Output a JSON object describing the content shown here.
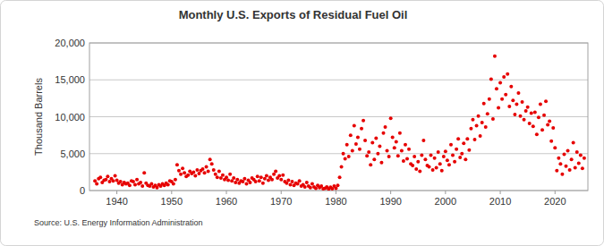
{
  "chart_data": {
    "type": "scatter",
    "title": "Monthly U.S. Exports of Residual Fuel Oil",
    "y_label": "Thousand Barrels",
    "source": "Source: U.S. Energy Information Administration",
    "color": "#e60000",
    "marker": "circle",
    "grid": true,
    "xlim": [
      1935,
      2026
    ],
    "ylim": [
      0,
      20000
    ],
    "xticks": [
      1940,
      1950,
      1960,
      1970,
      1980,
      1990,
      2000,
      2010,
      2020
    ],
    "yticks": [
      0,
      {
        "value": 5000,
        "label": "5,000"
      },
      {
        "value": 10000,
        "label": "10,000"
      },
      {
        "value": 15000,
        "label": "15,000"
      },
      {
        "value": 20000,
        "label": "20,000"
      }
    ],
    "x": [
      1936,
      1936.33,
      1936.67,
      1937,
      1937.33,
      1937.67,
      1938,
      1938.33,
      1938.67,
      1939,
      1939.33,
      1939.67,
      1940,
      1940.33,
      1940.67,
      1941,
      1941.33,
      1941.67,
      1942,
      1942.33,
      1942.67,
      1943,
      1943.33,
      1943.67,
      1944,
      1944.33,
      1944.67,
      1945,
      1945.33,
      1945.67,
      1946,
      1946.33,
      1946.67,
      1947,
      1947.33,
      1947.67,
      1948,
      1948.33,
      1948.67,
      1949,
      1949.33,
      1949.67,
      1950,
      1950.33,
      1950.67,
      1951,
      1951.33,
      1951.67,
      1952,
      1952.33,
      1952.67,
      1953,
      1953.33,
      1953.67,
      1954,
      1954.33,
      1954.67,
      1955,
      1955.33,
      1955.67,
      1956,
      1956.33,
      1956.67,
      1957,
      1957.33,
      1957.67,
      1958,
      1958.33,
      1958.67,
      1959,
      1959.33,
      1959.67,
      1960,
      1960.33,
      1960.67,
      1961,
      1961.33,
      1961.67,
      1962,
      1962.33,
      1962.67,
      1963,
      1963.33,
      1963.67,
      1964,
      1964.33,
      1964.67,
      1965,
      1965.33,
      1965.67,
      1966,
      1966.33,
      1966.67,
      1967,
      1967.33,
      1967.67,
      1968,
      1968.33,
      1968.67,
      1969,
      1969.33,
      1969.67,
      1970,
      1970.33,
      1970.67,
      1971,
      1971.33,
      1971.67,
      1972,
      1972.33,
      1972.67,
      1973,
      1973.33,
      1973.67,
      1974,
      1974.33,
      1974.67,
      1975,
      1975.33,
      1975.67,
      1976,
      1976.33,
      1976.67,
      1977,
      1977.33,
      1977.67,
      1978,
      1978.33,
      1978.67,
      1979,
      1979.33,
      1979.67,
      1980,
      1980.33,
      1980.67,
      1981,
      1981.33,
      1981.67,
      1982,
      1982.33,
      1982.67,
      1983,
      1983.33,
      1983.67,
      1984,
      1984.33,
      1984.67,
      1985,
      1985.33,
      1985.67,
      1986,
      1986.33,
      1986.67,
      1987,
      1987.33,
      1987.67,
      1988,
      1988.33,
      1988.67,
      1989,
      1989.33,
      1989.67,
      1990,
      1990.33,
      1990.67,
      1991,
      1991.33,
      1991.67,
      1992,
      1992.33,
      1992.67,
      1993,
      1993.33,
      1993.67,
      1994,
      1994.33,
      1994.67,
      1995,
      1995.33,
      1995.67,
      1996,
      1996.33,
      1996.67,
      1997,
      1997.33,
      1997.67,
      1998,
      1998.33,
      1998.67,
      1999,
      1999.33,
      1999.67,
      2000,
      2000.33,
      2000.67,
      2001,
      2001.33,
      2001.67,
      2002,
      2002.33,
      2002.67,
      2003,
      2003.33,
      2003.67,
      2004,
      2004.33,
      2004.67,
      2005,
      2005.33,
      2005.67,
      2006,
      2006.33,
      2006.67,
      2007,
      2007.33,
      2007.67,
      2008,
      2008.33,
      2008.67,
      2009,
      2009.33,
      2009.67,
      2010,
      2010.33,
      2010.67,
      2011,
      2011.33,
      2011.67,
      2012,
      2012.33,
      2012.67,
      2013,
      2013.33,
      2013.67,
      2014,
      2014.33,
      2014.67,
      2015,
      2015.33,
      2015.67,
      2016,
      2016.33,
      2016.67,
      2017,
      2017.33,
      2017.67,
      2018,
      2018.33,
      2018.67,
      2019,
      2019.33,
      2019.67,
      2020,
      2020.33,
      2020.67,
      2021,
      2021.33,
      2021.67,
      2022,
      2022.33,
      2022.67,
      2023,
      2023.33,
      2023.67,
      2024,
      2024.33,
      2024.67,
      2025,
      2025.33
    ],
    "values": [
      1300,
      900,
      1600,
      1800,
      1100,
      1400,
      1500,
      1900,
      1200,
      1600,
      1300,
      2000,
      1400,
      1000,
      1200,
      800,
      1100,
      900,
      1000,
      700,
      1300,
      1200,
      800,
      1500,
      900,
      1100,
      600,
      2400,
      1000,
      700,
      600,
      900,
      500,
      700,
      400,
      800,
      600,
      900,
      700,
      1000,
      800,
      1300,
      1200,
      900,
      1500,
      3500,
      2700,
      2200,
      3000,
      2400,
      1900,
      2100,
      2600,
      2300,
      2500,
      2000,
      2800,
      2300,
      2700,
      2900,
      2400,
      3200,
      2600,
      4200,
      3600,
      2800,
      2200,
      1800,
      2600,
      1700,
      2100,
      1500,
      1800,
      1400,
      2200,
      1300,
      1700,
      1100,
      1500,
      1000,
      1300,
      1200,
      1600,
      900,
      1400,
      1100,
      1700,
      1500,
      1200,
      1900,
      1300,
      1800,
      1000,
      1600,
      2000,
      1400,
      1800,
      1500,
      2200,
      2600,
      1700,
      2000,
      1500,
      2100,
      1200,
      1000,
      1400,
      800,
      1200,
      700,
      1000,
      900,
      1300,
      600,
      800,
      500,
      1100,
      600,
      400,
      900,
      500,
      300,
      700,
      400,
      600,
      250,
      300,
      500,
      200,
      450,
      250,
      600,
      300,
      700,
      1800,
      3200,
      5000,
      4300,
      6200,
      4600,
      7500,
      5400,
      8800,
      6300,
      7200,
      5600,
      8400,
      9500,
      6800,
      4700,
      5200,
      3500,
      6500,
      4200,
      7100,
      5000,
      6000,
      3800,
      7800,
      8600,
      5400,
      4600,
      9800,
      7200,
      5800,
      6600,
      4700,
      7800,
      5400,
      4000,
      6200,
      4300,
      5600,
      3600,
      3400,
      4600,
      2900,
      3900,
      2600,
      4800,
      6800,
      4200,
      3400,
      3200,
      4800,
      2800,
      4400,
      3100,
      5200,
      3600,
      2700,
      4600,
      5300,
      4100,
      3500,
      6200,
      4800,
      3900,
      5600,
      7000,
      4500,
      5000,
      6400,
      4200,
      7000,
      5500,
      8400,
      9600,
      6900,
      8800,
      10100,
      7400,
      9200,
      11800,
      8600,
      10400,
      12400,
      15100,
      9700,
      18200,
      13800,
      11200,
      14600,
      12400,
      15400,
      13000,
      15800,
      11400,
      14100,
      12200,
      10300,
      11700,
      13200,
      10100,
      12000,
      9600,
      10800,
      11300,
      9100,
      10500,
      8700,
      10600,
      7600,
      9900,
      11700,
      8200,
      10200,
      12100,
      8900,
      9400,
      6700,
      8500,
      5800,
      2700,
      4400,
      3600,
      2200,
      4900,
      3300,
      5400,
      2800,
      4200,
      6500,
      3100,
      5200,
      3700,
      4800,
      3000,
      4400
    ]
  }
}
